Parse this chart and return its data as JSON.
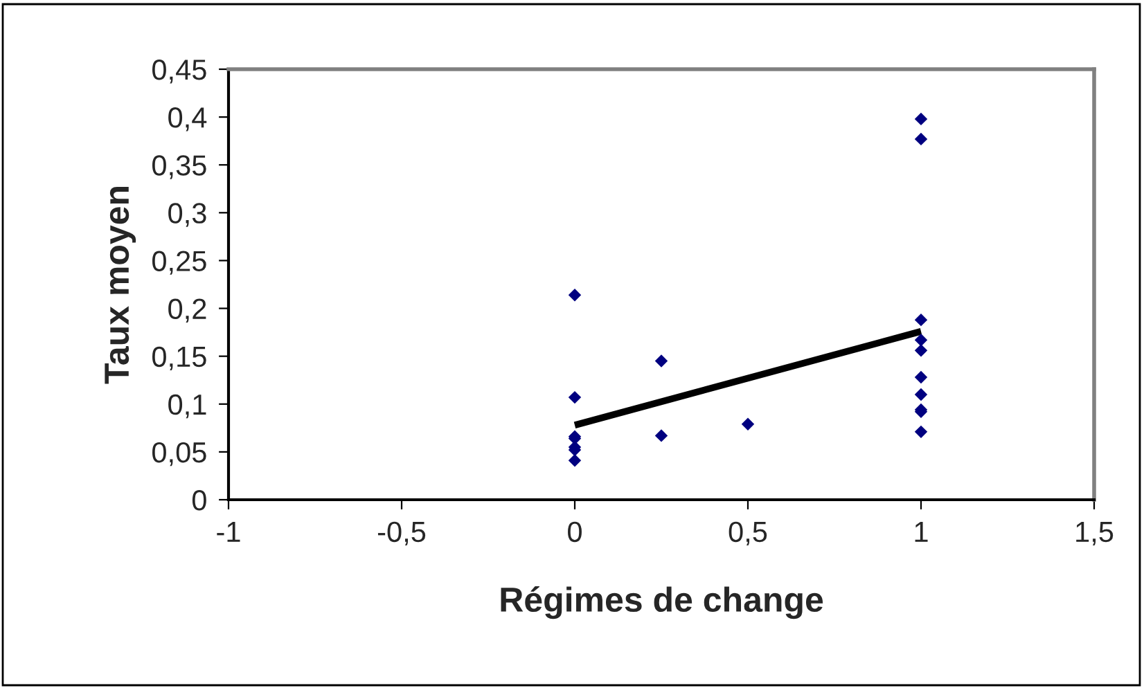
{
  "chart_data": {
    "type": "scatter",
    "xlabel": "Régimes de change",
    "ylabel": "Taux moyen",
    "series": [
      {
        "color": "#000080",
        "marker": "diamond",
        "x": [
          0,
          0,
          0,
          0,
          0,
          0,
          0,
          0.25,
          0.25,
          0.5,
          1,
          1,
          1,
          1,
          1,
          1,
          1,
          1,
          1,
          1
        ],
        "values": [
          0.214,
          0.107,
          0.066,
          0.064,
          0.055,
          0.052,
          0.041,
          0.145,
          0.067,
          0.079,
          0.398,
          0.377,
          0.188,
          0.167,
          0.156,
          0.128,
          0.11,
          0.094,
          0.092,
          0.071
        ]
      },
      {
        "type": "line",
        "color": "#000000",
        "marker": "none",
        "line_style": "solid",
        "x": [
          0,
          1
        ],
        "values": [
          0.078,
          0.176
        ]
      }
    ],
    "xlim": [
      -1,
      1.5
    ],
    "ylim": [
      0,
      0.45
    ],
    "xticks": [
      -1,
      {
        "value": -0.5,
        "label": "-0,5"
      },
      0,
      {
        "value": 0.5,
        "label": "0,5"
      },
      1,
      {
        "value": 1.5,
        "label": "1,5"
      }
    ],
    "yticks": [
      0,
      {
        "value": 0.05,
        "label": "0,05"
      },
      {
        "value": 0.1,
        "label": "0,1"
      },
      {
        "value": 0.15,
        "label": "0,15"
      },
      {
        "value": 0.2,
        "label": "0,2"
      },
      {
        "value": 0.25,
        "label": "0,25"
      },
      {
        "value": 0.3,
        "label": "0,3"
      },
      {
        "value": 0.35,
        "label": "0,35"
      },
      {
        "value": 0.4,
        "label": "0,4"
      },
      {
        "value": 0.45,
        "label": "0,45"
      }
    ],
    "grid": false,
    "legend": false
  }
}
